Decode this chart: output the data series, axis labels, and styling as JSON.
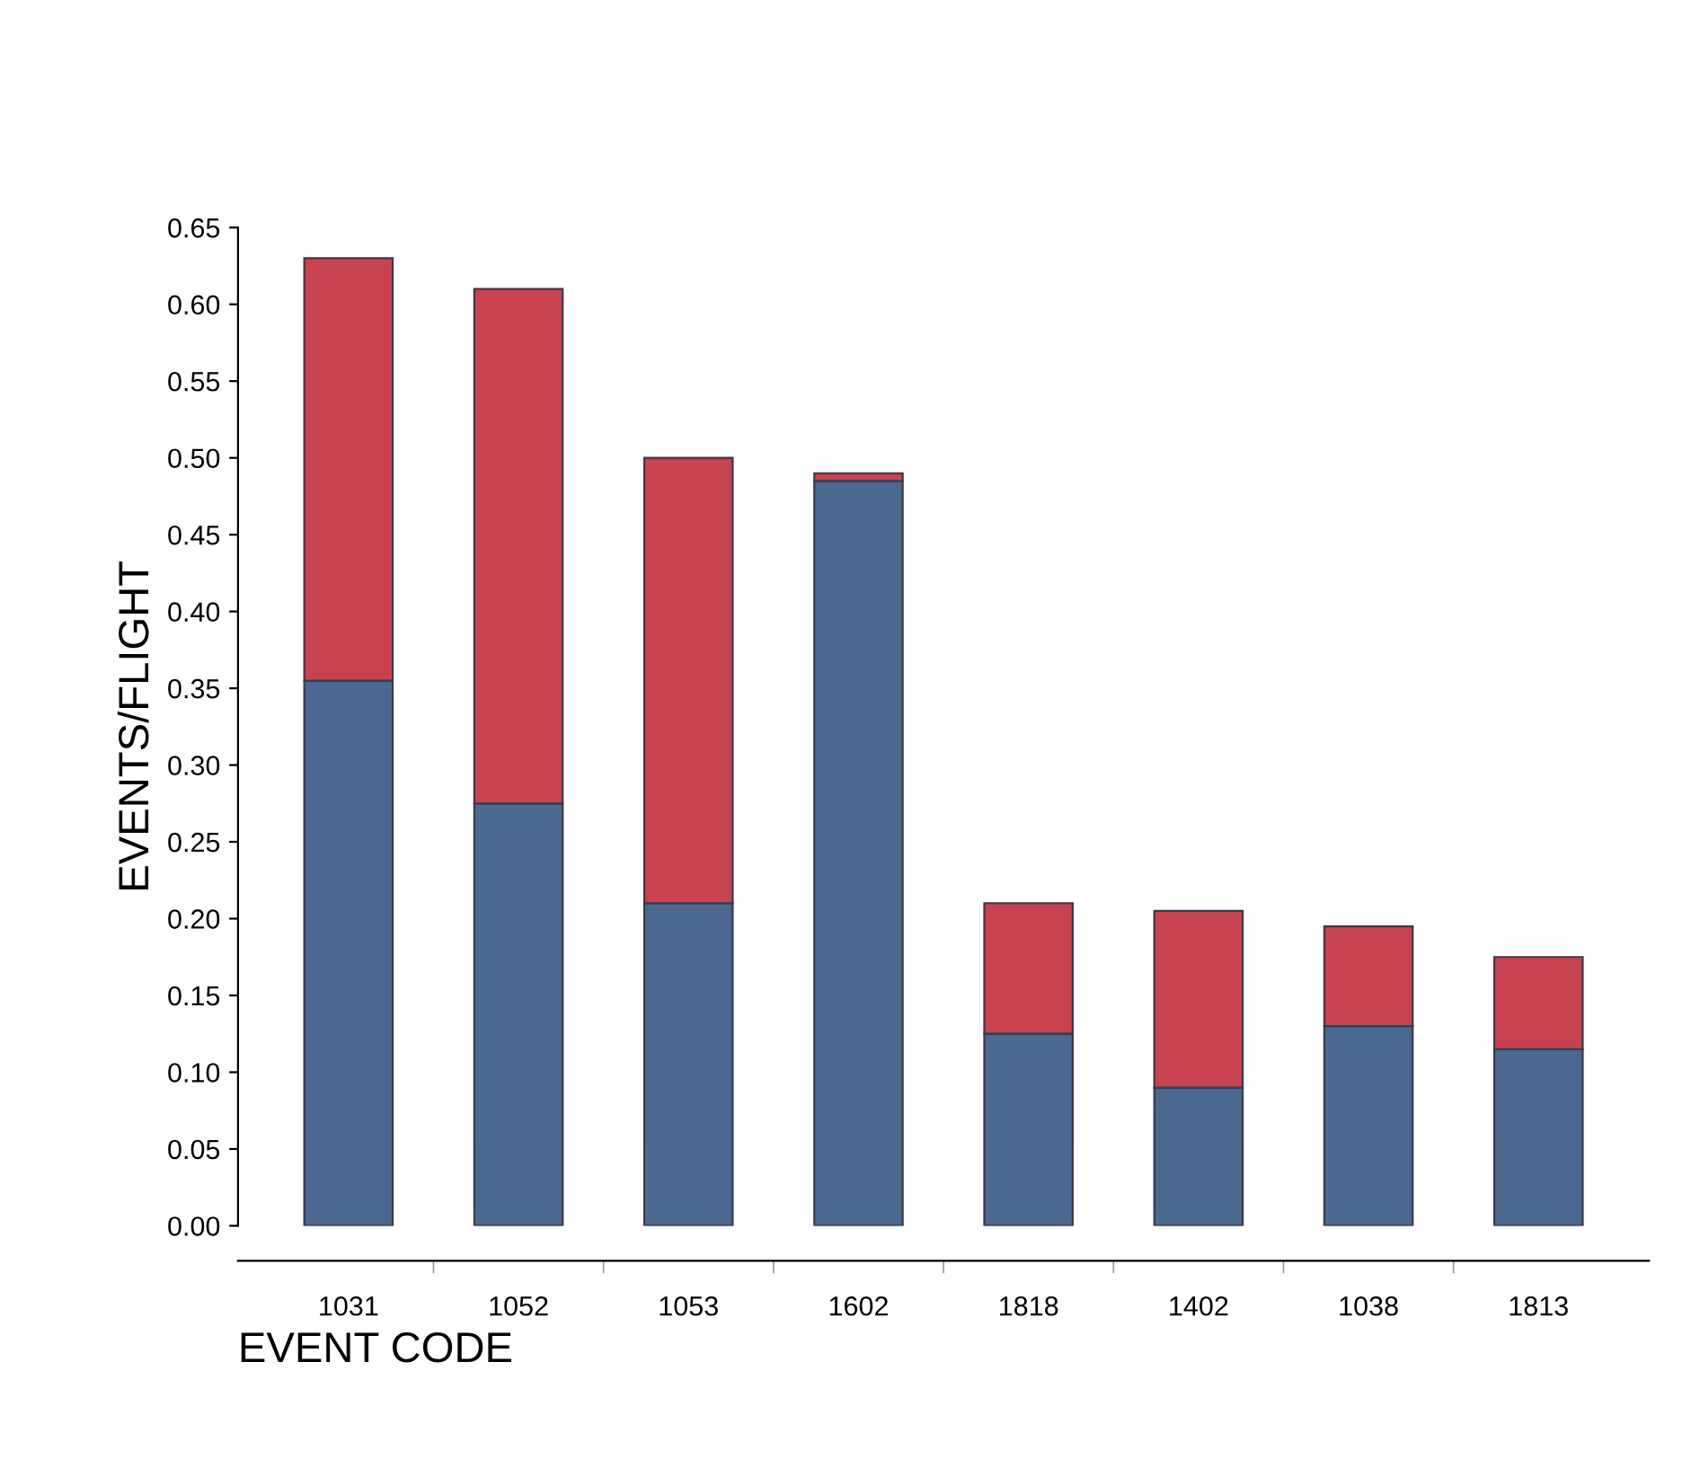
{
  "chart_data": {
    "type": "bar",
    "stacked": true,
    "xlabel": "EVENT CODE",
    "ylabel": "EVENTS/FLIGHT",
    "categories": [
      "1031",
      "1052",
      "1053",
      "1602",
      "1818",
      "1402",
      "1038",
      "1813"
    ],
    "series": [
      {
        "color": "#4a6890",
        "values": [
          0.355,
          0.275,
          0.21,
          0.485,
          0.125,
          0.09,
          0.13,
          0.115
        ]
      },
      {
        "color": "#c8434f",
        "values": [
          0.275,
          0.335,
          0.29,
          0.005,
          0.085,
          0.115,
          0.065,
          0.06
        ]
      }
    ],
    "ylim": [
      0,
      0.65
    ],
    "yticks": [
      {
        "value": 0,
        "label": "0.00"
      },
      {
        "value": 0.05,
        "label": "0.05"
      },
      {
        "value": 0.1,
        "label": "0.10"
      },
      {
        "value": 0.15,
        "label": "0.15"
      },
      {
        "value": 0.2,
        "label": "0.20"
      },
      {
        "value": 0.25,
        "label": "0.25"
      },
      {
        "value": 0.3,
        "label": "0.30"
      },
      {
        "value": 0.35,
        "label": "0.35"
      },
      {
        "value": 0.4,
        "label": "0.40"
      },
      {
        "value": 0.45,
        "label": "0.45"
      },
      {
        "value": 0.5,
        "label": "0.50"
      },
      {
        "value": 0.55,
        "label": "0.55"
      },
      {
        "value": 0.6,
        "label": "0.60"
      },
      {
        "value": 0.65,
        "label": "0.65"
      }
    ],
    "grid": false
  }
}
